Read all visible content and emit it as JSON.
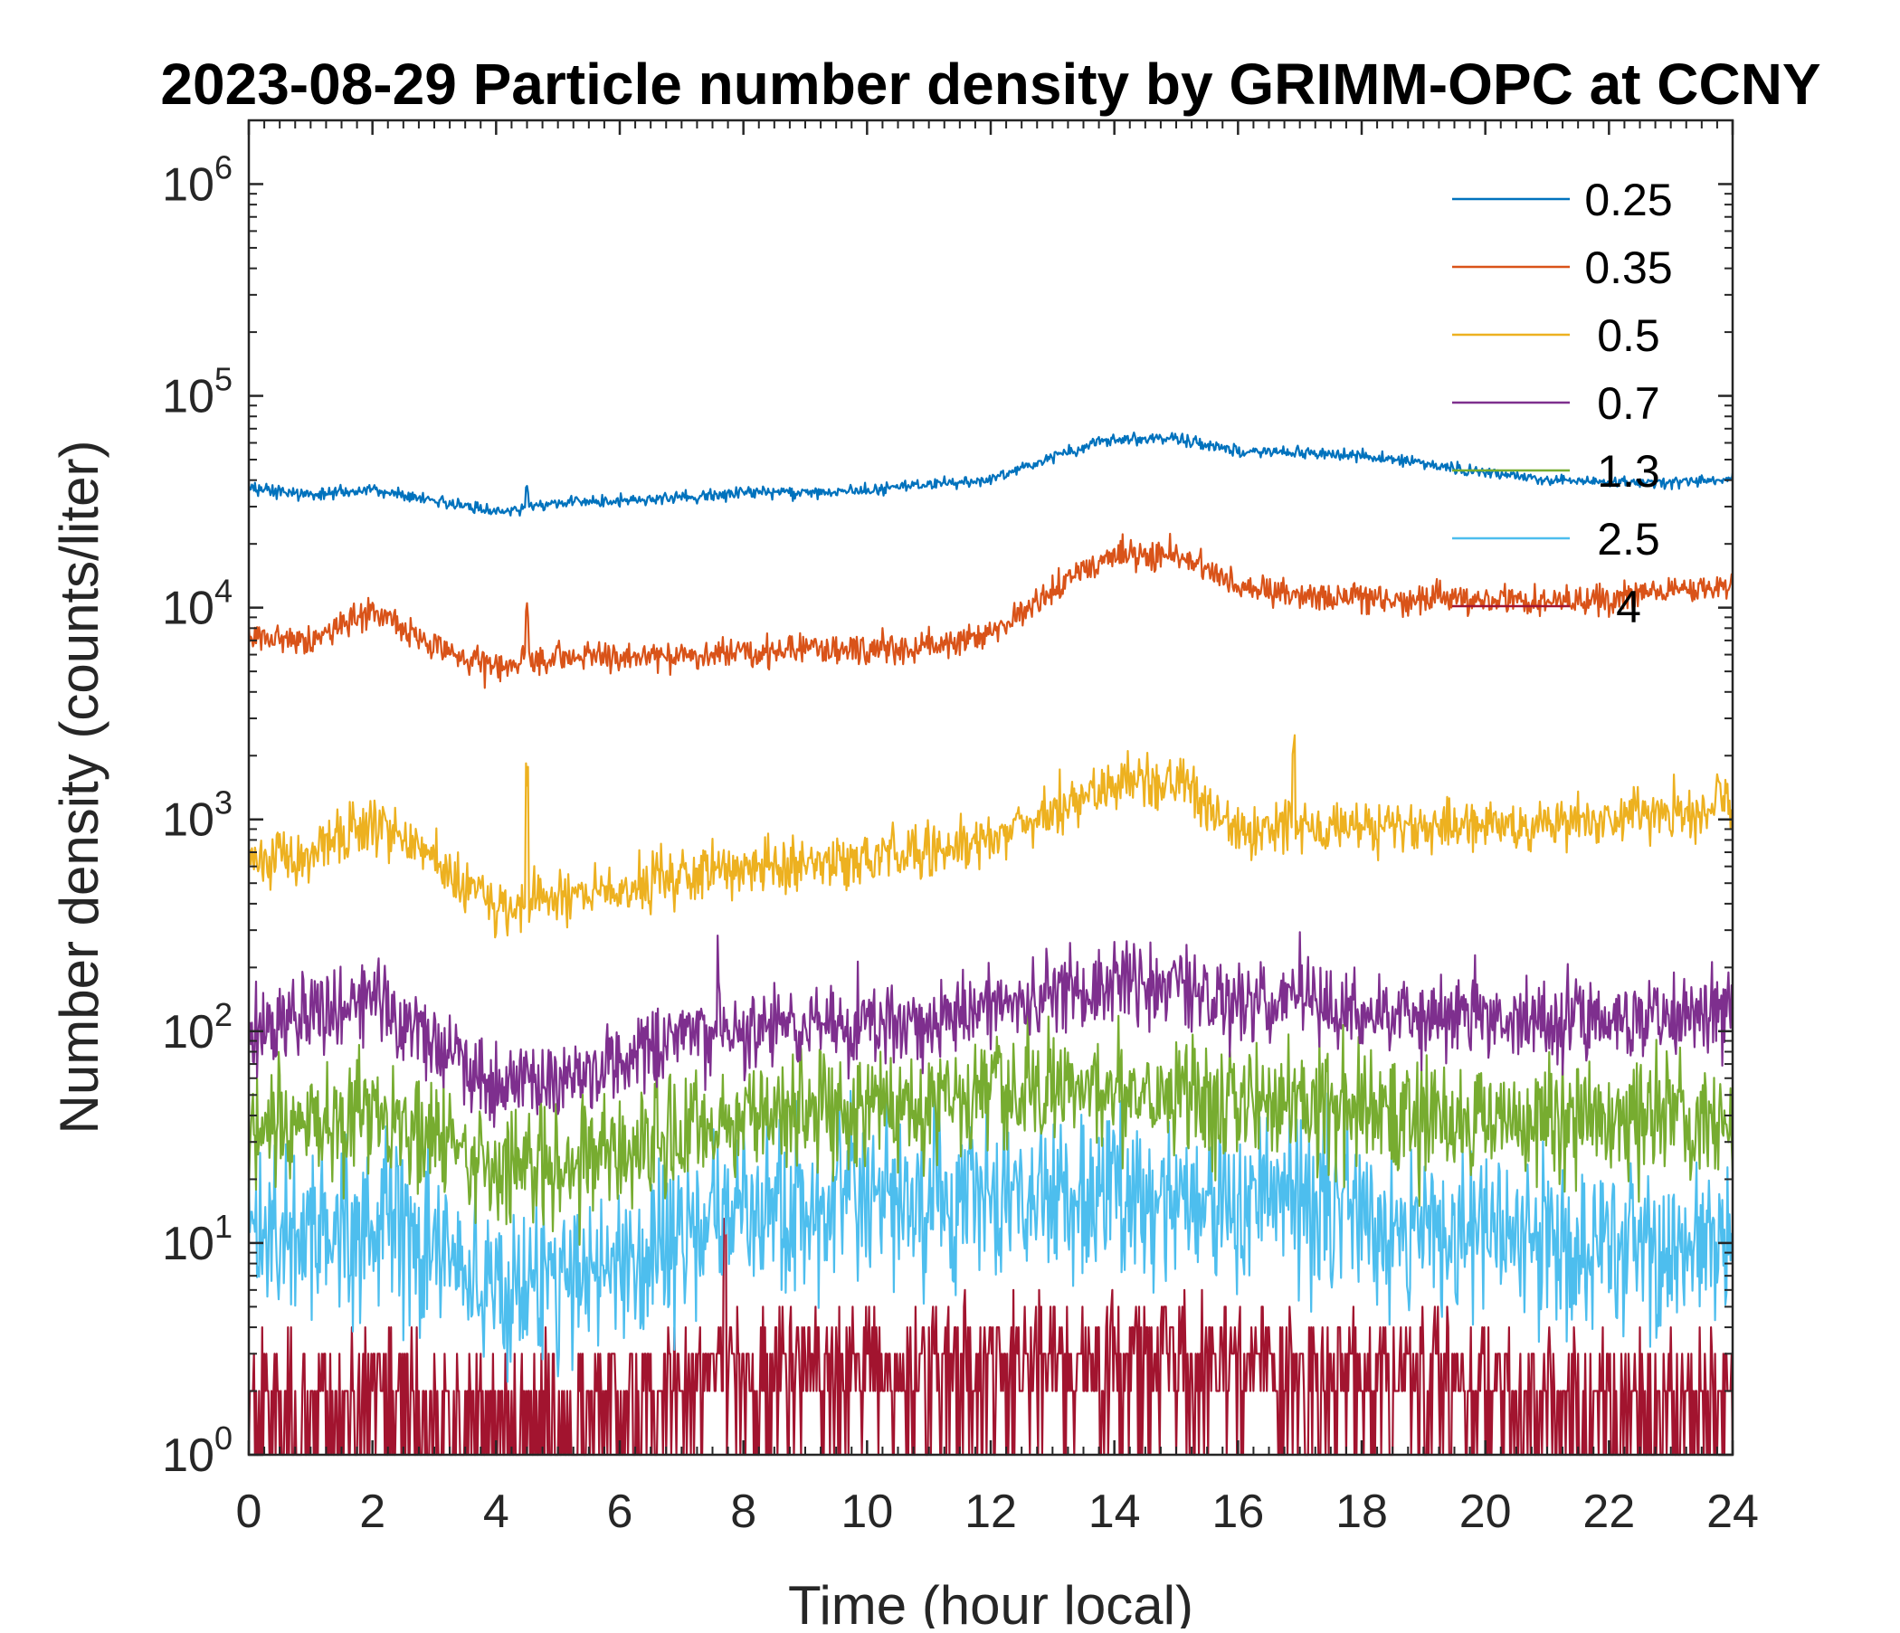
{
  "chart_data": {
    "type": "line",
    "title": "2023-08-29 Particle number density by GRIMM-OPC at CCNY",
    "xlabel": "Time (hour local)",
    "ylabel": "Number density (counts/liter)",
    "xlim": [
      0,
      24
    ],
    "ylim": [
      1,
      2000000
    ],
    "yscale": "log",
    "xticks": [
      0,
      2,
      4,
      6,
      8,
      10,
      12,
      14,
      16,
      18,
      20,
      22,
      24
    ],
    "xtick_labels": [
      "0",
      "2",
      "4",
      "6",
      "8",
      "10",
      "12",
      "14",
      "16",
      "18",
      "20",
      "22",
      "24"
    ],
    "yticks": [
      1,
      10,
      100,
      1000,
      10000,
      100000,
      1000000
    ],
    "ytick_labels": [
      {
        "base": "10",
        "exp": "0"
      },
      {
        "base": "10",
        "exp": "1"
      },
      {
        "base": "10",
        "exp": "2"
      },
      {
        "base": "10",
        "exp": "3"
      },
      {
        "base": "10",
        "exp": "4"
      },
      {
        "base": "10",
        "exp": "5"
      },
      {
        "base": "10",
        "exp": "6"
      }
    ],
    "legend_position": "top-right",
    "x": [
      0,
      1,
      2,
      3,
      4,
      5,
      6,
      7,
      8,
      9,
      10,
      11,
      12,
      13,
      14,
      15,
      16,
      17,
      18,
      19,
      20,
      21,
      22,
      23,
      24
    ],
    "series": [
      {
        "name": "0.25",
        "color": "#0072BD",
        "noise": 0.04,
        "values": [
          37000,
          34000,
          36000,
          32000,
          28000,
          31000,
          32000,
          33000,
          35000,
          35000,
          36000,
          38000,
          40000,
          52000,
          63000,
          63000,
          55000,
          54000,
          52000,
          48000,
          43000,
          40000,
          39000,
          39000,
          41000
        ]
      },
      {
        "name": "0.35",
        "color": "#D95319",
        "noise": 0.1,
        "values": [
          7500,
          7000,
          9500,
          6500,
          5200,
          5800,
          5900,
          6000,
          6200,
          6300,
          6400,
          6500,
          7500,
          12000,
          18000,
          18000,
          12500,
          11500,
          11000,
          10800,
          11000,
          10800,
          11000,
          12000,
          13000
        ]
      },
      {
        "name": "0.5",
        "color": "#EDB120",
        "noise": 0.18,
        "values": [
          650,
          700,
          1000,
          650,
          380,
          430,
          470,
          550,
          580,
          620,
          650,
          700,
          800,
          1100,
          1500,
          1500,
          900,
          950,
          900,
          900,
          950,
          950,
          1000,
          1100,
          1200
        ]
      },
      {
        "name": "0.7",
        "color": "#7E2F8E",
        "noise": 0.28,
        "values": [
          100,
          120,
          150,
          90,
          55,
          60,
          70,
          90,
          100,
          105,
          110,
          115,
          125,
          150,
          170,
          170,
          130,
          150,
          120,
          120,
          120,
          115,
          115,
          120,
          125
        ]
      },
      {
        "name": "1.3",
        "color": "#77AC30",
        "noise": 0.4,
        "values": [
          30,
          35,
          45,
          30,
          22,
          25,
          27,
          32,
          40,
          42,
          44,
          46,
          48,
          52,
          55,
          55,
          45,
          50,
          42,
          40,
          38,
          37,
          37,
          38,
          40
        ]
      },
      {
        "name": "2.5",
        "color": "#4DBEEE",
        "noise": 0.55,
        "values": [
          10,
          11,
          13,
          9,
          6,
          7,
          8,
          11,
          14,
          15,
          15,
          15,
          16,
          17,
          17,
          17,
          15,
          16,
          14,
          12,
          11,
          10,
          10,
          9,
          10
        ]
      },
      {
        "name": "4",
        "color": "#A2142F",
        "noise": 0.8,
        "values": [
          1.6,
          1.7,
          2,
          1.5,
          1.2,
          1.3,
          1.5,
          2,
          2.5,
          2.6,
          2.6,
          2.6,
          2.7,
          2.8,
          3,
          3,
          2.6,
          2.8,
          2.4,
          2.2,
          2,
          1.8,
          1.7,
          1.6,
          1.7
        ]
      }
    ],
    "spikes": [
      {
        "series": "0.25",
        "x": 4.5,
        "value": 36000
      },
      {
        "series": "0.35",
        "x": 4.5,
        "value": 9300
      },
      {
        "series": "0.5",
        "x": 4.5,
        "value": 1550
      },
      {
        "series": "0.5",
        "x": 16.9,
        "value": 2300
      },
      {
        "series": "0.7",
        "x": 7.6,
        "value": 200
      },
      {
        "series": "4",
        "x": 7.7,
        "value": 13
      }
    ]
  }
}
